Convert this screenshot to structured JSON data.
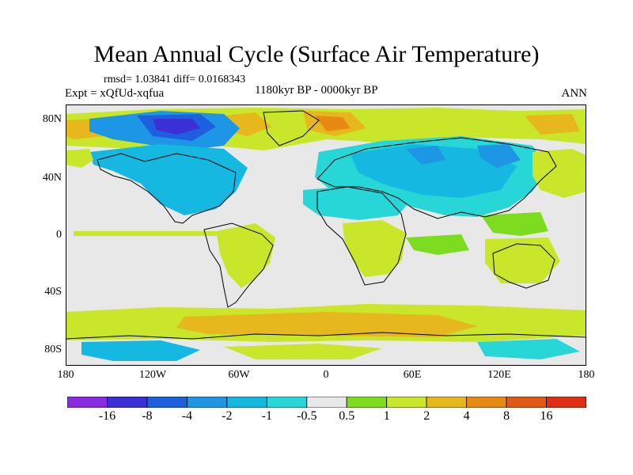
{
  "title": "Mean Annual Cycle (Surface Air Temperature)",
  "stats": "rmsd= 1.03841 diff= 0.0168343",
  "experiment": "Expt = xQfUd-xqfua",
  "period": "1180kyr BP - 0000kyr BP",
  "season": "ANN",
  "y_labels": [
    "80N",
    "40N",
    "0",
    "40S",
    "80S"
  ],
  "x_labels": [
    "180",
    "120W",
    "60W",
    "0",
    "60E",
    "120E",
    "180"
  ],
  "colorbar": {
    "labels": [
      "-16",
      "-8",
      "-4",
      "-2",
      "-1",
      "-0.5",
      "0.5",
      "1",
      "2",
      "4",
      "8",
      "16"
    ],
    "colors": [
      "#8a2be2",
      "#3b30d6",
      "#1e5fe0",
      "#1e96e6",
      "#14b8e0",
      "#27d6d6",
      "#e8e8e8",
      "#7ddc1f",
      "#c9e62a",
      "#e6b81e",
      "#e68a14",
      "#e05a14",
      "#e02d14"
    ]
  },
  "colors": {
    "background": "#e8e8e8",
    "warm_light": "#c9e62a",
    "warm_mid": "#e6b81e",
    "cool_light": "#14b8e0",
    "cool_mid": "#1e96e6",
    "cool_dark": "#1e5fe0",
    "frame": "#000000"
  }
}
